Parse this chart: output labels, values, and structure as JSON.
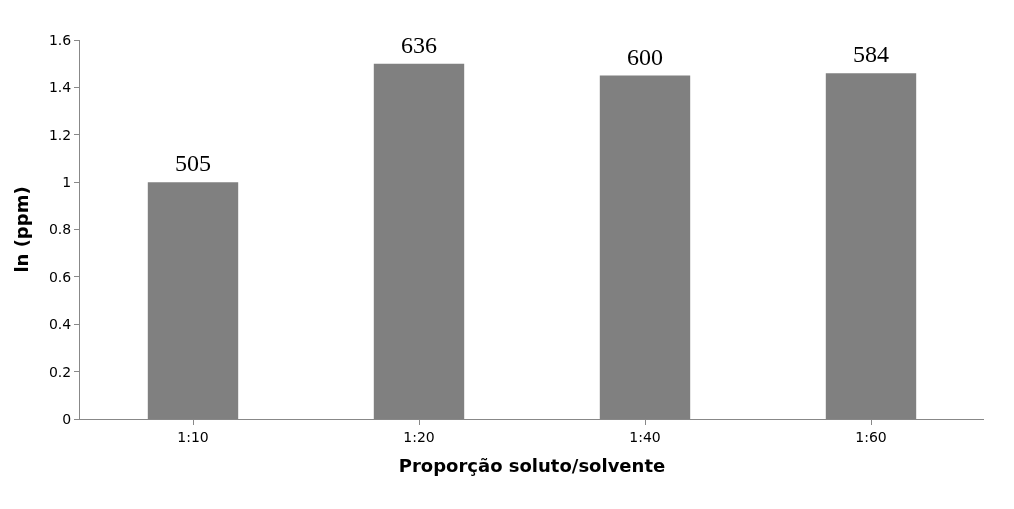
{
  "chart_data": {
    "type": "bar",
    "xlabel": "Proporção soluto/solvente",
    "ylabel": "ln (ppm)",
    "categories": [
      "1:10",
      "1:20",
      "1:40",
      "1:60"
    ],
    "values": [
      1.0,
      1.5,
      1.45,
      1.46
    ],
    "annotations": [
      {
        "text": "505",
        "x": "1:10",
        "y": 1.0
      },
      {
        "text": "636",
        "x": "1:20",
        "y": 1.5
      },
      {
        "text": "600",
        "x": "1:40",
        "y": 1.45
      },
      {
        "text": "584",
        "x": "1:60",
        "y": 1.46
      }
    ],
    "color": "#808080",
    "ylim": [
      0,
      1.6
    ],
    "yticks": [
      0,
      0.2,
      0.4,
      0.6,
      0.8,
      1,
      1.2,
      1.4,
      1.6
    ]
  }
}
